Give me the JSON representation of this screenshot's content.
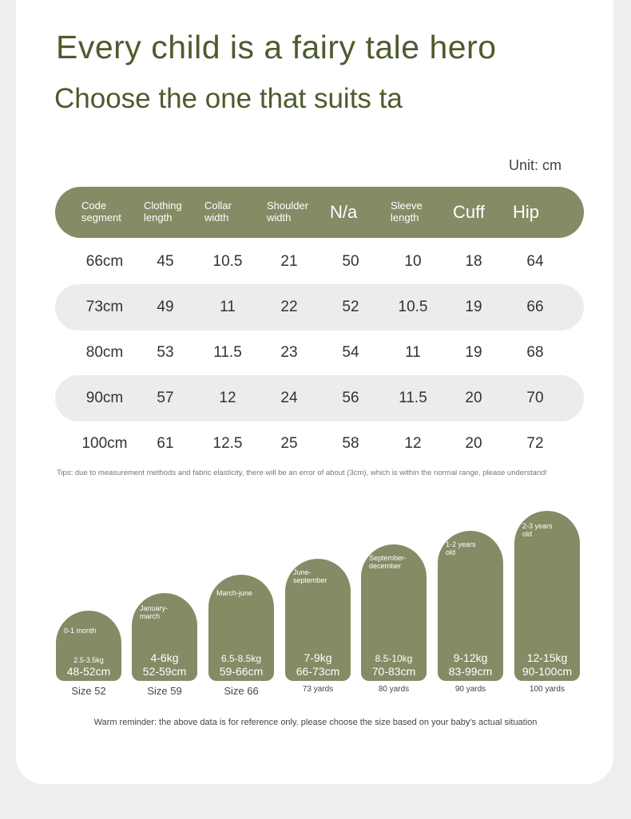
{
  "title": "Every child is a fairy tale hero",
  "subtitle": "Choose the one that suits ta",
  "unit": "Unit: cm",
  "table": {
    "headers": [
      "Code\nsegment",
      "Clothing\nlength",
      "Collar\nwidth",
      "Shoulder\nwidth",
      "N/a",
      "Sleeve\nlength",
      "Cuff",
      "Hip"
    ],
    "rows": [
      [
        "66cm",
        "45",
        "10.5",
        "21",
        "50",
        "10",
        "18",
        "64"
      ],
      [
        "73cm",
        "49",
        "11",
        "22",
        "52",
        "10.5",
        "19",
        "66"
      ],
      [
        "80cm",
        "53",
        "11.5",
        "23",
        "54",
        "11",
        "19",
        "68"
      ],
      [
        "90cm",
        "57",
        "12",
        "24",
        "56",
        "11.5",
        "20",
        "70"
      ],
      [
        "100cm",
        "61",
        "12.5",
        "25",
        "58",
        "12",
        "20",
        "72"
      ]
    ]
  },
  "tips": "Tips: due to measurement methods and fabric elasticity, there will be an error of about (3cm), which is within the normal range, please understand!",
  "sizes": [
    {
      "age": "0-1 month",
      "weight": "2.5-3.5kg",
      "height": "48-52cm",
      "size": "Size 52"
    },
    {
      "age": "January-\nmarch",
      "weight": "4-6kg",
      "height": "52-59cm",
      "size": "Size 59"
    },
    {
      "age": "March-june",
      "weight": "6.5-8.5kg",
      "height": "59-66cm",
      "size": "Size 66"
    },
    {
      "age": "June-\nseptember",
      "weight": "7-9kg",
      "height": "66-73cm",
      "size": "73 yards"
    },
    {
      "age": "September-\ndecember",
      "weight": "8.5-10kg",
      "height": "70-83cm",
      "size": "80 yards"
    },
    {
      "age": "1-2 years\nold",
      "weight": "9-12kg",
      "height": "83-99cm",
      "size": "90 yards"
    },
    {
      "age": "2-3 years\nold",
      "weight": "12-15kg",
      "height": "90-100cm",
      "size": "100 yards"
    }
  ],
  "reminder": "Warm reminder: the above data is for reference only. please choose the size based on your baby's actual situation",
  "colors": {
    "accent": "#838c65",
    "title": "#4d5b2e",
    "row_shade": "#ececec"
  }
}
